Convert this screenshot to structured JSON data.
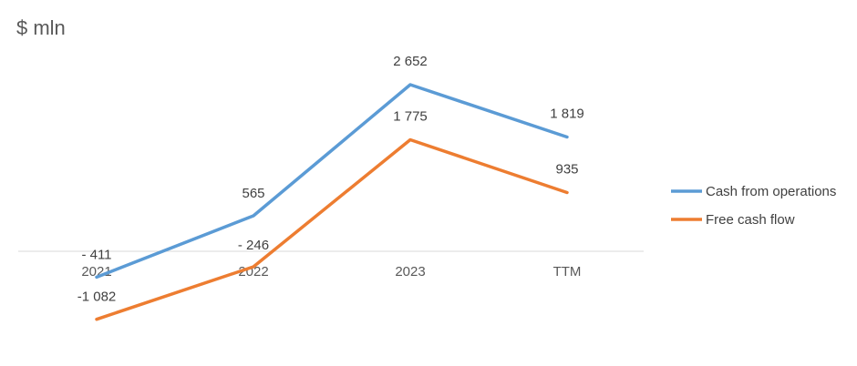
{
  "unit_label": "$ mln",
  "chart_data": {
    "type": "line",
    "title": "",
    "xlabel": "",
    "ylabel": "$ mln",
    "categories": [
      "2021",
      "2022",
      "2023",
      "TTM"
    ],
    "ylim": [
      -1200,
      2800
    ],
    "grid": false,
    "legend_position": "right",
    "series": [
      {
        "name": "Cash from operations",
        "values": [
          -411,
          565,
          2652,
          1819
        ],
        "labels": [
          "- 411",
          "565",
          "2 652",
          "1 819"
        ],
        "color": "#5B9BD5"
      },
      {
        "name": "Free cash flow",
        "values": [
          -1082,
          -246,
          1775,
          935
        ],
        "labels": [
          "-1 082",
          "- 246",
          "1 775",
          "935"
        ],
        "color": "#ED7D31"
      }
    ]
  }
}
